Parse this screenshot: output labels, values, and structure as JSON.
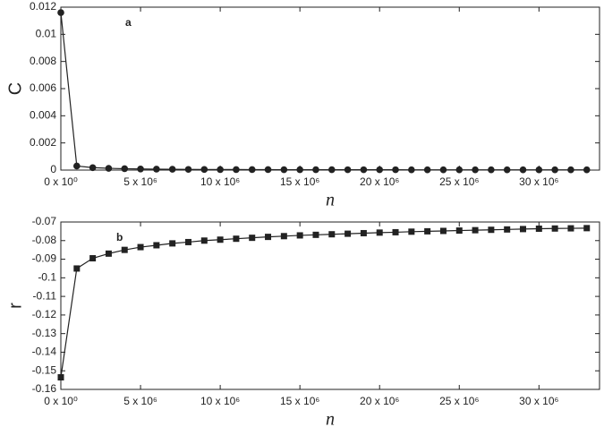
{
  "chart_data": [
    {
      "type": "line",
      "annotation": "a",
      "ylabel": "C",
      "xlabel": "n",
      "marker": "circle",
      "color": "#222222",
      "x": [
        0,
        1000000,
        2000000,
        3000000,
        4000000,
        5000000,
        6000000,
        7000000,
        8000000,
        9000000,
        10000000,
        11000000,
        12000000,
        13000000,
        14000000,
        15000000,
        16000000,
        17000000,
        18000000,
        19000000,
        20000000,
        21000000,
        22000000,
        23000000,
        24000000,
        25000000,
        26000000,
        27000000,
        28000000,
        29000000,
        30000000,
        31000000,
        32000000,
        33000000
      ],
      "values": [
        0.0116,
        0.0003,
        0.00018,
        0.00013,
        0.0001,
        8e-05,
        7e-05,
        6e-05,
        5e-05,
        4.5e-05,
        4e-05,
        4e-05,
        3.5e-05,
        3.5e-05,
        3e-05,
        3e-05,
        3e-05,
        3e-05,
        2.5e-05,
        2.5e-05,
        2.5e-05,
        2.5e-05,
        2e-05,
        2e-05,
        2e-05,
        2e-05,
        2e-05,
        2e-05,
        2e-05,
        2e-05,
        2e-05,
        2e-05,
        2e-05,
        2e-05
      ],
      "xlim": [
        0,
        33800000
      ],
      "ylim": [
        0,
        0.012
      ],
      "xticks": [
        {
          "value": 0,
          "label": "0 x 10⁰"
        },
        {
          "value": 5000000,
          "label": "5 x 10⁶"
        },
        {
          "value": 10000000,
          "label": "10 x 10⁶"
        },
        {
          "value": 15000000,
          "label": "15 x 10⁶"
        },
        {
          "value": 20000000,
          "label": "20 x 10⁶"
        },
        {
          "value": 25000000,
          "label": "25 x 10⁶"
        },
        {
          "value": 30000000,
          "label": "30 x 10⁶"
        }
      ],
      "yticks": [
        0,
        0.002,
        0.004,
        0.006,
        0.008,
        0.01,
        0.012
      ]
    },
    {
      "type": "line",
      "annotation": "b",
      "ylabel": "r",
      "xlabel": "n",
      "marker": "square",
      "color": "#222222",
      "x": [
        0,
        1000000,
        2000000,
        3000000,
        4000000,
        5000000,
        6000000,
        7000000,
        8000000,
        9000000,
        10000000,
        11000000,
        12000000,
        13000000,
        14000000,
        15000000,
        16000000,
        17000000,
        18000000,
        19000000,
        20000000,
        21000000,
        22000000,
        23000000,
        24000000,
        25000000,
        26000000,
        27000000,
        28000000,
        29000000,
        30000000,
        31000000,
        32000000,
        33000000
      ],
      "values": [
        -0.1535,
        -0.095,
        -0.0895,
        -0.087,
        -0.085,
        -0.0835,
        -0.0825,
        -0.0815,
        -0.0808,
        -0.08,
        -0.0795,
        -0.079,
        -0.0785,
        -0.078,
        -0.0776,
        -0.0772,
        -0.0769,
        -0.0766,
        -0.0763,
        -0.076,
        -0.0757,
        -0.0755,
        -0.0752,
        -0.075,
        -0.0748,
        -0.0746,
        -0.0744,
        -0.0742,
        -0.074,
        -0.0738,
        -0.0736,
        -0.0735,
        -0.0734,
        -0.0733
      ],
      "xlim": [
        0,
        33800000
      ],
      "ylim": [
        -0.16,
        -0.07
      ],
      "xticks": [
        {
          "value": 0,
          "label": "0 x 10⁰"
        },
        {
          "value": 5000000,
          "label": "5 x 10⁶"
        },
        {
          "value": 10000000,
          "label": "10 x 10⁶"
        },
        {
          "value": 15000000,
          "label": "15 x 10⁶"
        },
        {
          "value": 20000000,
          "label": "20 x 10⁶"
        },
        {
          "value": 25000000,
          "label": "25 x 10⁶"
        },
        {
          "value": 30000000,
          "label": "30 x 10⁶"
        }
      ],
      "yticks": [
        -0.16,
        -0.15,
        -0.14,
        -0.13,
        -0.12,
        -0.11,
        -0.1,
        -0.09,
        -0.08,
        -0.07
      ]
    }
  ]
}
